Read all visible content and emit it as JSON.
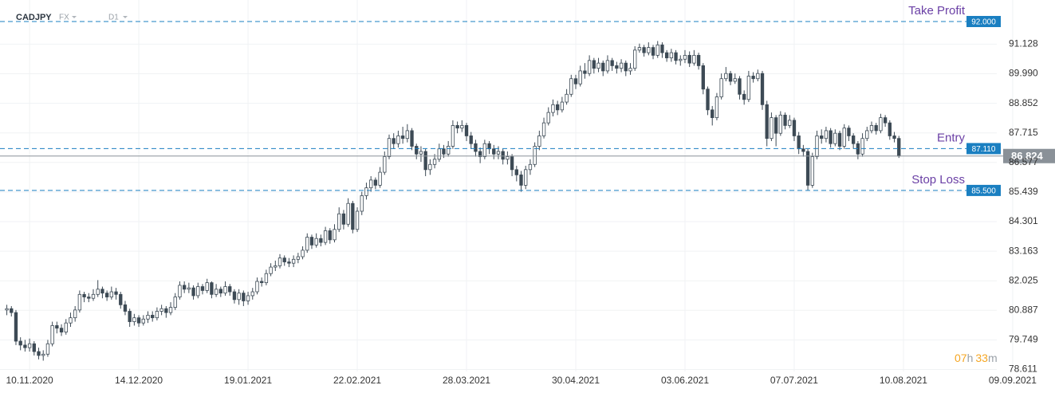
{
  "chart_data": {
    "type": "candlestick",
    "symbol": "CADJPY",
    "market": "FX",
    "timeframe": "D1",
    "countdown": {
      "hours": "07",
      "hours_unit": "h",
      "minutes": "33",
      "minutes_unit": "m"
    },
    "up_color": "#ffffff",
    "down_color": "#3d4a55",
    "wick_color": "#3d4a55",
    "grid": true,
    "xlim": [
      -1.5,
      230.3
    ],
    "ylim": [
      78.534,
      92.828
    ],
    "xticks": [
      {
        "value": 5,
        "label": "10.11.2020"
      },
      {
        "value": 29,
        "label": "14.12.2020"
      },
      {
        "value": 53,
        "label": "19.01.2021"
      },
      {
        "value": 77,
        "label": "22.02.2021"
      },
      {
        "value": 101,
        "label": "28.03.2021"
      },
      {
        "value": 125,
        "label": "30.04.2021"
      },
      {
        "value": 149,
        "label": "03.06.2021"
      },
      {
        "value": 173,
        "label": "07.07.2021"
      },
      {
        "value": 197,
        "label": "10.08.2021"
      },
      {
        "value": 221,
        "label": "09.09.2021"
      }
    ],
    "yticks": [
      78.611,
      79.749,
      80.887,
      82.025,
      83.163,
      84.301,
      85.439,
      86.577,
      87.715,
      88.852,
      {
        "value": 89.99,
        "label": "89.990"
      },
      91.128
    ],
    "levels": [
      {
        "name": "Take Profit",
        "value": 92,
        "label": "92.000",
        "color": "#1a7fc1",
        "name_color": "#6a3fa5"
      },
      {
        "name": "Entry",
        "value": 87.11,
        "label": "87.110",
        "color": "#1a7fc1",
        "name_color": "#6a3fa5"
      },
      {
        "name": "Stop Loss",
        "value": 85.5,
        "label": "85.500",
        "color": "#1a7fc1",
        "name_color": "#6a3fa5"
      }
    ],
    "last_price_color": "#8a9198",
    "open": [
      80.9,
      80.95,
      80.8,
      79.7,
      79.55,
      79.45,
      79.6,
      79.3,
      79.15,
      79.2,
      79.6,
      80.3,
      80.2,
      80.05,
      80.4,
      80.6,
      80.9,
      81.5,
      81.4,
      81.35,
      81.5,
      81.7,
      81.55,
      81.4,
      81.6,
      81.5,
      81.1,
      80.85,
      80.45,
      80.6,
      80.4,
      80.55,
      80.7,
      80.6,
      80.85,
      80.95,
      80.8,
      81.0,
      81.4,
      81.85,
      81.7,
      81.75,
      81.45,
      81.8,
      81.65,
      81.95,
      81.5,
      81.7,
      81.55,
      81.8,
      81.6,
      81.3,
      81.55,
      81.25,
      81.45,
      81.6,
      82.0,
      81.95,
      82.3,
      82.55,
      82.6,
      82.9,
      82.75,
      82.7,
      82.85,
      82.95,
      83.2,
      83.7,
      83.4,
      83.65,
      83.5,
      83.95,
      83.6,
      84.0,
      84.6,
      84.2,
      85.0,
      84.0,
      84.7,
      85.3,
      85.6,
      85.9,
      85.7,
      86.2,
      86.8,
      87.5,
      87.3,
      87.6,
      87.5,
      87.8,
      87.2,
      86.9,
      87.0,
      86.3,
      86.5,
      86.7,
      87.1,
      86.9,
      87.2,
      88.0,
      87.9,
      88.0,
      87.6,
      87.3,
      87.0,
      86.8,
      87.3,
      87.1,
      86.9,
      87.0,
      86.7,
      86.8,
      86.3,
      86.1,
      85.7,
      86.3,
      86.5,
      87.2,
      87.6,
      88.1,
      88.5,
      88.8,
      88.6,
      88.9,
      89.2,
      89.8,
      89.6,
      90.1,
      90.0,
      90.5,
      90.2,
      90.4,
      90.1,
      90.5,
      90.3,
      90.2,
      90.4,
      90.1,
      90.2,
      90.9,
      91.0,
      90.8,
      91.0,
      90.7,
      91.1,
      90.8,
      90.6,
      90.8,
      90.5,
      90.55,
      90.7,
      90.4,
      90.7,
      90.3,
      89.4,
      88.6,
      88.3,
      89.1,
      89.8,
      90.0,
      89.7,
      89.8,
      89.2,
      89.0,
      89.9,
      89.8,
      90.0,
      88.8,
      87.5,
      88.3,
      87.7,
      88.4,
      88.0,
      88.2,
      87.6,
      87.1,
      87.0,
      85.7,
      86.8,
      87.6,
      87.5,
      87.8,
      87.3,
      87.7,
      87.2,
      87.9,
      87.6,
      87.3,
      86.9,
      87.5,
      87.8,
      88.0,
      87.8,
      88.3,
      88.1,
      87.6,
      87.5
    ],
    "high": [
      81.1,
      81.05,
      80.9,
      79.85,
      79.75,
      79.8,
      79.7,
      79.45,
      79.35,
      79.75,
      80.45,
      80.45,
      80.35,
      80.55,
      80.8,
      81.05,
      81.65,
      81.6,
      81.55,
      81.7,
      82.05,
      81.8,
      81.65,
      81.8,
      81.75,
      81.6,
      81.25,
      80.95,
      80.75,
      80.7,
      80.7,
      80.85,
      80.85,
      81.0,
      81.1,
      81.05,
      81.2,
      81.55,
      82.0,
      82.0,
      81.95,
      81.85,
      81.95,
      81.9,
      82.1,
      82.0,
      81.9,
      81.8,
      82.0,
      81.9,
      81.7,
      81.7,
      81.65,
      81.6,
      81.75,
      82.15,
      82.15,
      82.45,
      82.7,
      82.8,
      83.05,
      83.0,
      82.9,
      83.0,
      83.1,
      83.35,
      83.85,
      83.8,
      83.85,
      83.8,
      84.1,
      84.05,
      84.2,
      84.85,
      84.75,
      85.2,
      85.1,
      84.85,
      85.45,
      85.8,
      86.05,
      86.0,
      86.4,
      87.0,
      87.65,
      87.7,
      87.8,
      87.95,
      88.05,
      87.9,
      87.3,
      87.2,
      87.1,
      86.7,
      86.9,
      87.3,
      87.25,
      87.4,
      88.2,
      88.15,
      88.2,
      88.1,
      87.75,
      87.45,
      87.15,
      87.45,
      87.4,
      87.25,
      87.2,
      87.1,
      87.0,
      86.9,
      86.45,
      86.25,
      86.45,
      86.7,
      87.35,
      87.8,
      88.3,
      88.7,
      89.0,
      88.95,
      89.1,
      89.4,
      89.95,
      89.95,
      90.3,
      90.4,
      90.7,
      90.6,
      90.6,
      90.5,
      90.7,
      90.6,
      90.45,
      90.55,
      90.5,
      90.4,
      91.05,
      91.15,
      91.1,
      91.2,
      91.1,
      91.25,
      91.2,
      90.9,
      90.95,
      90.9,
      90.7,
      90.9,
      90.85,
      90.9,
      90.8,
      90.4,
      89.5,
      88.75,
      89.25,
      90.0,
      90.25,
      90.1,
      90.0,
      89.9,
      89.35,
      90.1,
      90.05,
      90.15,
      90.1,
      88.95,
      88.5,
      88.4,
      88.55,
      88.5,
      88.4,
      88.3,
      87.75,
      87.25,
      87.1,
      86.95,
      87.8,
      87.85,
      87.95,
      87.9,
      87.85,
      87.8,
      88.05,
      88.0,
      87.7,
      87.4,
      87.7,
      87.95,
      88.15,
      88.1,
      88.45,
      88.4,
      88.2,
      87.75,
      87.6
    ],
    "low": [
      80.7,
      80.65,
      79.55,
      79.35,
      79.3,
      79.3,
      79.15,
      79.0,
      78.95,
      79.1,
      79.5,
      80.0,
      79.9,
      79.95,
      80.25,
      80.45,
      80.8,
      81.2,
      81.2,
      81.25,
      81.4,
      81.35,
      81.25,
      81.3,
      81.3,
      80.95,
      80.7,
      80.25,
      80.3,
      80.25,
      80.3,
      80.4,
      80.45,
      80.5,
      80.7,
      80.6,
      80.7,
      80.9,
      81.3,
      81.55,
      81.55,
      81.3,
      81.35,
      81.5,
      81.55,
      81.35,
      81.4,
      81.4,
      81.45,
      81.45,
      81.15,
      81.1,
      81.05,
      81.1,
      81.3,
      81.5,
      81.8,
      81.85,
      82.2,
      82.4,
      82.5,
      82.6,
      82.55,
      82.55,
      82.7,
      82.85,
      83.1,
      83.25,
      83.3,
      83.35,
      83.4,
      83.45,
      83.5,
      83.9,
      84.0,
      84.1,
      83.85,
      83.9,
      84.55,
      85.15,
      85.45,
      85.55,
      85.6,
      86.1,
      86.7,
      87.1,
      87.15,
      87.3,
      87.35,
      87.05,
      86.7,
      86.6,
      86.05,
      86.1,
      86.35,
      86.6,
      86.75,
      86.8,
      87.1,
      87.7,
      87.75,
      87.4,
      87.1,
      86.8,
      86.55,
      86.7,
      86.9,
      86.7,
      86.7,
      86.5,
      86.5,
      86.05,
      85.85,
      85.45,
      85.55,
      86.1,
      86.4,
      87.05,
      87.5,
      88.0,
      88.35,
      88.4,
      88.5,
      88.8,
      89.1,
      89.4,
      89.5,
      89.8,
      89.9,
      90.0,
      90.05,
      89.9,
      90.0,
      90.1,
      90.0,
      90.05,
      89.9,
      89.95,
      90.1,
      90.8,
      90.65,
      90.7,
      90.55,
      90.6,
      90.6,
      90.45,
      90.45,
      90.35,
      90.3,
      90.4,
      90.25,
      90.3,
      90.15,
      89.2,
      88.4,
      88.0,
      88.2,
      89.0,
      89.7,
      89.55,
      89.6,
      89.0,
      88.8,
      88.9,
      89.65,
      89.7,
      88.6,
      87.2,
      87.4,
      87.2,
      87.6,
      87.85,
      87.9,
      87.4,
      86.9,
      86.8,
      85.5,
      85.6,
      86.7,
      87.3,
      87.35,
      87.15,
      87.2,
      87.05,
      87.1,
      87.4,
      87.1,
      86.7,
      86.8,
      87.4,
      87.7,
      87.65,
      87.7,
      87.95,
      87.45,
      87.35,
      86.75
    ],
    "close": [
      80.95,
      80.8,
      79.7,
      79.55,
      79.45,
      79.6,
      79.3,
      79.15,
      79.2,
      79.6,
      80.3,
      80.2,
      80.05,
      80.4,
      80.6,
      80.9,
      81.5,
      81.4,
      81.35,
      81.5,
      81.7,
      81.55,
      81.4,
      81.6,
      81.5,
      81.1,
      80.85,
      80.45,
      80.6,
      80.4,
      80.55,
      80.7,
      80.6,
      80.85,
      80.95,
      80.8,
      81.0,
      81.4,
      81.85,
      81.7,
      81.75,
      81.45,
      81.8,
      81.65,
      81.95,
      81.5,
      81.7,
      81.55,
      81.8,
      81.6,
      81.3,
      81.55,
      81.25,
      81.45,
      81.6,
      82.0,
      81.95,
      82.3,
      82.55,
      82.6,
      82.9,
      82.75,
      82.7,
      82.85,
      82.95,
      83.2,
      83.7,
      83.4,
      83.65,
      83.5,
      83.95,
      83.6,
      84.0,
      84.6,
      84.2,
      85.0,
      84.0,
      84.7,
      85.3,
      85.6,
      85.9,
      85.7,
      86.2,
      86.8,
      87.5,
      87.3,
      87.6,
      87.5,
      87.8,
      87.2,
      86.9,
      87.0,
      86.3,
      86.5,
      86.7,
      87.1,
      86.9,
      87.2,
      88.0,
      87.9,
      88.0,
      87.6,
      87.3,
      87.0,
      86.8,
      87.3,
      87.1,
      86.9,
      87.0,
      86.7,
      86.8,
      86.3,
      86.1,
      85.7,
      86.3,
      86.5,
      87.2,
      87.6,
      88.1,
      88.5,
      88.8,
      88.6,
      88.9,
      89.2,
      89.8,
      89.6,
      90.1,
      90.0,
      90.5,
      90.2,
      90.4,
      90.1,
      90.5,
      90.3,
      90.2,
      90.4,
      90.1,
      90.2,
      90.9,
      91.0,
      90.8,
      91.0,
      90.7,
      91.1,
      90.8,
      90.6,
      90.8,
      90.5,
      90.55,
      90.7,
      90.4,
      90.7,
      90.3,
      89.4,
      88.6,
      88.3,
      89.1,
      89.8,
      90.0,
      89.7,
      89.8,
      89.2,
      89.0,
      89.9,
      89.8,
      90.0,
      88.8,
      87.5,
      88.3,
      87.7,
      88.4,
      88.0,
      88.2,
      87.6,
      87.1,
      87.0,
      85.7,
      86.8,
      87.6,
      87.5,
      87.8,
      87.3,
      87.7,
      87.2,
      87.9,
      87.6,
      87.3,
      86.9,
      87.5,
      87.8,
      88.0,
      87.8,
      88.3,
      88.1,
      87.6,
      87.5,
      86.824
    ]
  }
}
